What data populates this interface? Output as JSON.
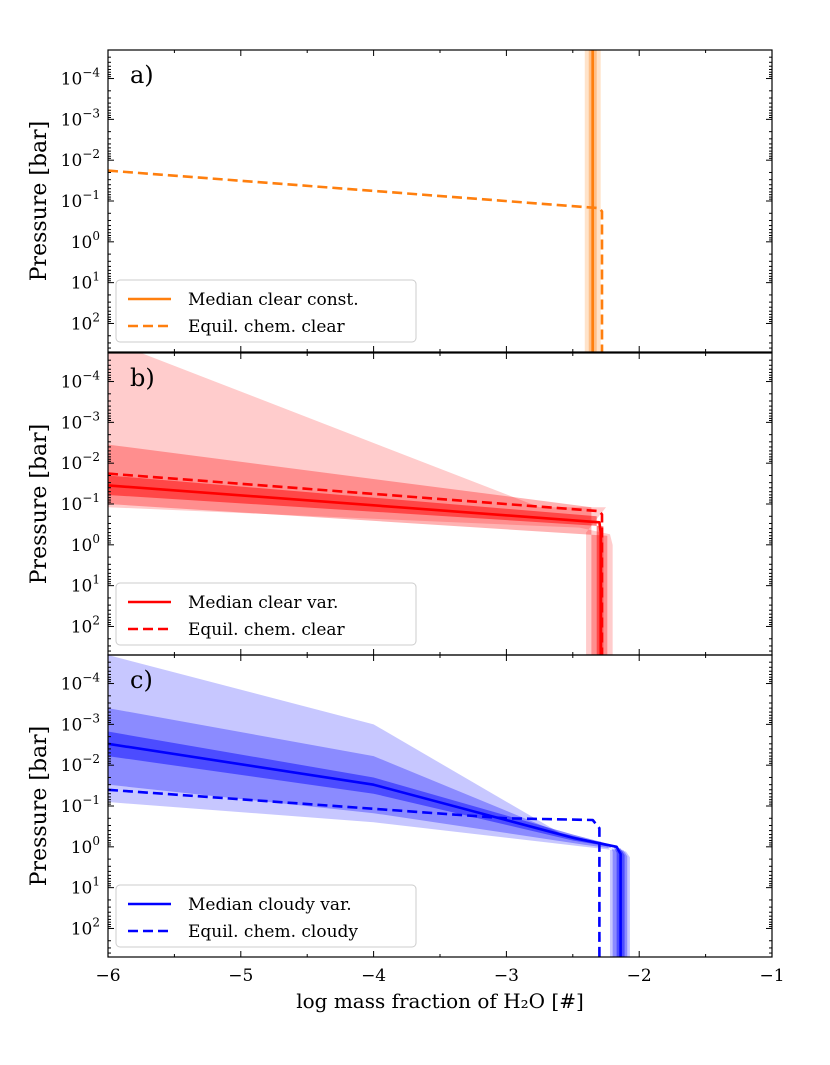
{
  "chart_data": [
    {
      "type": "line",
      "panel_label": "a)",
      "ylabel": "Pressure [bar]",
      "xlim": [
        -6,
        -1
      ],
      "ylim": [
        2e-05,
        500
      ],
      "yscale": "log",
      "y_inverted": true,
      "grid": false,
      "legend": "lower-left",
      "series": [
        {
          "name": "Median clear const.",
          "color": "#ff7f0e",
          "dash": "solid",
          "x": [
            -2.35,
            -2.35
          ],
          "y": [
            2e-05,
            500
          ],
          "bands": [
            {
              "x_lo": -2.36,
              "x_hi": -2.34,
              "opacity": 0.55
            },
            {
              "x_lo": -2.38,
              "x_hi": -2.32,
              "opacity": 0.35
            },
            {
              "x_lo": -2.41,
              "x_hi": -2.29,
              "opacity": 0.22
            }
          ]
        },
        {
          "name": "Equil. chem. clear",
          "color": "#ff7f0e",
          "dash": "dashed",
          "x": [
            -6,
            -2.3,
            -2.28,
            -2.28
          ],
          "y": [
            0.018,
            0.15,
            0.18,
            500
          ]
        }
      ]
    },
    {
      "type": "line",
      "panel_label": "b)",
      "ylabel": "Pressure [bar]",
      "xlim": [
        -6,
        -1
      ],
      "ylim": [
        2e-05,
        500
      ],
      "yscale": "log",
      "y_inverted": true,
      "grid": false,
      "legend": "lower-left",
      "series": [
        {
          "name": "Median clear var.",
          "color": "#ff0000",
          "dash": "solid",
          "x": [
            -6,
            -2.3,
            -2.29,
            -2.29
          ],
          "y": [
            0.035,
            0.28,
            0.5,
            500
          ],
          "bands": [
            {
              "lo_x": [
                -6,
                -2.32,
                -2.32
              ],
              "lo_y": [
                0.02,
                0.2,
                500
              ],
              "hi_x": [
                -6,
                -2.27,
                -2.27
              ],
              "hi_y": [
                0.06,
                0.35,
                500
              ],
              "opacity": 0.5
            },
            {
              "lo_x": [
                -6,
                -2.36,
                -2.36
              ],
              "lo_y": [
                0.0035,
                0.12,
                500
              ],
              "hi_x": [
                -6,
                -2.24,
                -2.24
              ],
              "hi_y": [
                0.1,
                0.6,
                500
              ],
              "opacity": 0.3
            },
            {
              "lo_x": [
                -6,
                -5.75,
                -2.75,
                -2.25,
                -2.4,
                -2.4
              ],
              "lo_y": [
                2e-05,
                2e-05,
                0.12,
                0.12,
                0.5,
                500
              ],
              "hi_x": [
                -6,
                -2.45,
                -2.22,
                -2.2,
                -2.2
              ],
              "hi_y": [
                0.12,
                0.38,
                0.55,
                1.0,
                500
              ],
              "opacity": 0.2
            }
          ]
        },
        {
          "name": "Equil. chem. clear",
          "color": "#ff0000",
          "dash": "dashed",
          "x": [
            -6,
            -2.3,
            -2.28,
            -2.28
          ],
          "y": [
            0.018,
            0.15,
            0.18,
            500
          ]
        }
      ]
    },
    {
      "type": "line",
      "panel_label": "c)",
      "ylabel": "Pressure [bar]",
      "xlabel": "log mass fraction of H₂O [#]",
      "xlim": [
        -6,
        -1
      ],
      "ylim": [
        2e-05,
        500
      ],
      "yscale": "log",
      "y_inverted": true,
      "grid": false,
      "legend": "lower-left",
      "x_ticks": [
        -6,
        -5,
        -4,
        -3,
        -2,
        -1
      ],
      "series": [
        {
          "name": "Median cloudy var.",
          "color": "#0000ff",
          "dash": "solid",
          "x": [
            -6,
            -4.0,
            -2.5,
            -2.17,
            -2.14,
            -2.14
          ],
          "y": [
            0.003,
            0.03,
            0.6,
            1.0,
            1.5,
            500
          ],
          "bands": [
            {
              "lo_x": [
                -6,
                -4.0,
                -2.5,
                -2.2,
                -2.17,
                -2.17
              ],
              "lo_y": [
                0.0015,
                0.02,
                0.5,
                0.9,
                1.4,
                500
              ],
              "hi_x": [
                -6,
                -4.0,
                -2.5,
                -2.14,
                -2.11,
                -2.11
              ],
              "hi_y": [
                0.006,
                0.05,
                0.7,
                1.1,
                1.6,
                500
              ],
              "opacity": 0.45
            },
            {
              "lo_x": [
                -6,
                -4.0,
                -2.6,
                -2.22,
                -2.2,
                -2.2
              ],
              "lo_y": [
                0.0004,
                0.006,
                0.45,
                0.9,
                1.3,
                500
              ],
              "hi_x": [
                -6,
                -4.0,
                -2.4,
                -2.12,
                -2.09,
                -2.09
              ],
              "hi_y": [
                0.03,
                0.15,
                0.9,
                1.2,
                1.7,
                500
              ],
              "opacity": 0.3
            },
            {
              "lo_x": [
                -6,
                -4.0,
                -2.6,
                -2.25,
                -2.22,
                -2.22
              ],
              "lo_y": [
                2e-05,
                0.001,
                0.45,
                0.85,
                1.2,
                500
              ],
              "hi_x": [
                -6,
                -4.0,
                -2.3,
                -2.1,
                -2.07,
                -2.07
              ],
              "hi_y": [
                0.08,
                0.25,
                1.1,
                1.3,
                1.8,
                500
              ],
              "opacity": 0.22
            }
          ]
        },
        {
          "name": "Equil. chem. cloudy",
          "color": "#0000ff",
          "dash": "dashed",
          "x": [
            -6,
            -3.0,
            -2.35,
            -2.3,
            -2.3
          ],
          "y": [
            0.04,
            0.2,
            0.22,
            0.35,
            500
          ]
        }
      ]
    }
  ],
  "y_tick_labels": [
    {
      "mant": "10",
      "exp": "−4",
      "value": 0.0001
    },
    {
      "mant": "10",
      "exp": "−3",
      "value": 0.001
    },
    {
      "mant": "10",
      "exp": "−2",
      "value": 0.01
    },
    {
      "mant": "10",
      "exp": "−1",
      "value": 0.1
    },
    {
      "mant": "10",
      "exp": "0",
      "value": 1
    },
    {
      "mant": "10",
      "exp": "1",
      "value": 10
    },
    {
      "mant": "10",
      "exp": "2",
      "value": 100
    }
  ],
  "x_tick_labels": [
    "−6",
    "−5",
    "−4",
    "−3",
    "−2",
    "−1"
  ],
  "xlabel": "log mass fraction of H₂O [#]"
}
